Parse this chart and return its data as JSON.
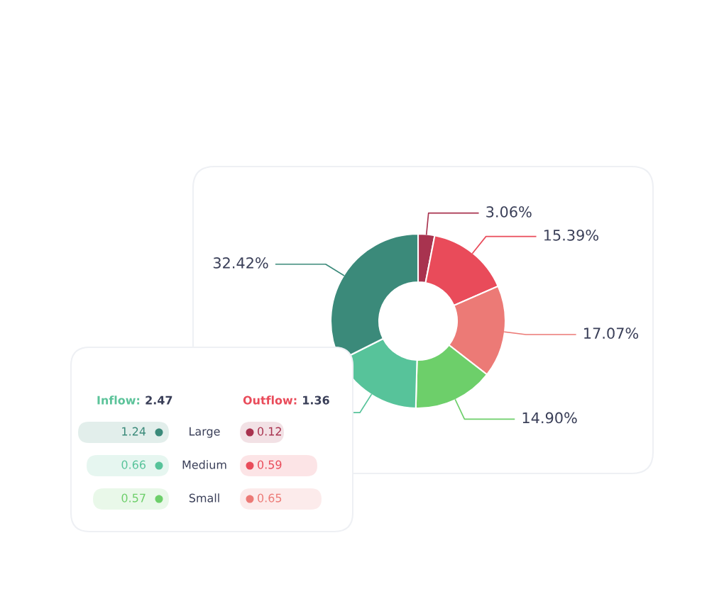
{
  "chart_data": [
    {
      "type": "donut",
      "categories": [
        null,
        null,
        null,
        null,
        null,
        null
      ],
      "values": [
        3.06,
        15.39,
        17.07,
        14.9,
        17.16,
        32.42
      ],
      "colors": [
        "#a8334f",
        "#e94b5a",
        "#ec7a76",
        "#6dcf6a",
        "#57c39a",
        "#3b8a7a"
      ],
      "value_labels": [
        "3.06%",
        "15.39%",
        "17.07%",
        "14.90%",
        null,
        "32.42%"
      ]
    },
    {
      "type": "other",
      "categories": [
        "Large",
        "Medium",
        "Small"
      ],
      "series": [
        {
          "name": "Inflow:",
          "color": "#5cc39a",
          "values": [
            1.24,
            0.66,
            0.57
          ],
          "colors": [
            "#3b8a7a",
            "#57c39a",
            "#6dcf6a"
          ]
        },
        {
          "name": "Outflow:",
          "color": "#e94b5a",
          "values": [
            0.12,
            0.59,
            0.65
          ],
          "colors": [
            "#a8334f",
            "#e94b5a",
            "#ec7a76"
          ]
        }
      ],
      "totals": [
        "2.47",
        "1.36"
      ],
      "data_labels": true
    }
  ]
}
